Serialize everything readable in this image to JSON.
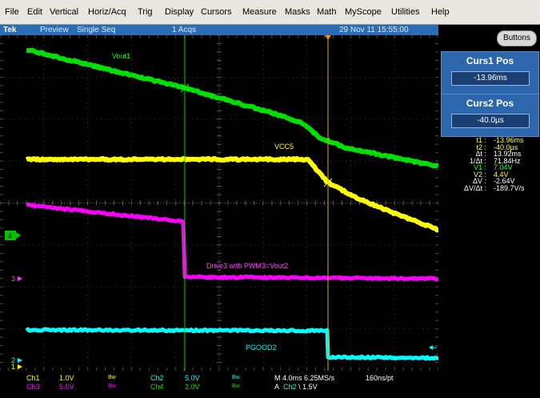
{
  "menu": [
    "File",
    "Edit",
    "Vertical",
    "Horiz/Acq",
    "Trig",
    "Display",
    "Cursors",
    "Measure",
    "Masks",
    "Math",
    "MyScope",
    "Utilities",
    "Help"
  ],
  "status": {
    "brand": "Tek",
    "mode": "Preview",
    "seq": "Single Seq",
    "acqs": "1 Acqs",
    "datetime": "29 Nov 11 15:55:00"
  },
  "side": {
    "buttons_label": "Buttons",
    "curs1": {
      "title": "Curs1 Pos",
      "value": "-13.96ms"
    },
    "curs2": {
      "title": "Curs2 Pos",
      "value": "-40.0µs"
    },
    "readout": [
      {
        "label": "t1 :",
        "value": "-13.96ms",
        "color": "#ffff33"
      },
      {
        "label": "t2 :",
        "value": "-40.0µs",
        "color": "#ffff33"
      },
      {
        "label": "Δt :",
        "value": "13.92ms",
        "color": "#ffffff"
      },
      {
        "label": "1/Δt :",
        "value": "71.84Hz",
        "color": "#ffffff"
      },
      {
        "label": "V1 :",
        "value": "7.04V",
        "color": "#33ff33"
      },
      {
        "label": "V2 :",
        "value": "4.4V",
        "color": "#ffff33"
      },
      {
        "label": "ΔV :",
        "value": "-2.64V",
        "color": "#ffffff"
      },
      {
        "label": "ΔV/Δt :",
        "value": "-189.7V/s",
        "color": "#ffffff"
      }
    ]
  },
  "traces": {
    "vout1": {
      "label": "Vout1",
      "color": "#00e000"
    },
    "vcc5": {
      "label": "VCC5",
      "color": "#ffff00"
    },
    "drive3": {
      "label": "Drive3 with PWM3=Vout2",
      "color": "#ff00ff"
    },
    "pgood2": {
      "label": "PGOOD2",
      "color": "#00ffff"
    }
  },
  "markers": {
    "ch4": "4",
    "ch3": "3",
    "ch2": "2",
    "ch1": "1"
  },
  "bottom": {
    "ch1": {
      "name": "Ch1",
      "scale": "1.0V",
      "bw": "Bw",
      "color": "#ffff00"
    },
    "ch2": {
      "name": "Ch2",
      "scale": "5.0V",
      "bw": "Bw",
      "color": "#00ffff"
    },
    "ch3": {
      "name": "Ch3",
      "scale": "5.0V",
      "bw": "Bw",
      "color": "#ff00ff"
    },
    "ch4": {
      "name": "Ch4",
      "scale": "2.0V",
      "bw": "Bw",
      "color": "#00e000"
    },
    "timebase": "M 4.0ms 6.25MS/s",
    "resolution": "160ns/pt",
    "trigger_prefix": "A",
    "trigger_source": "Ch2",
    "trigger_slope": "\\",
    "trigger_level": "1.5V"
  }
}
